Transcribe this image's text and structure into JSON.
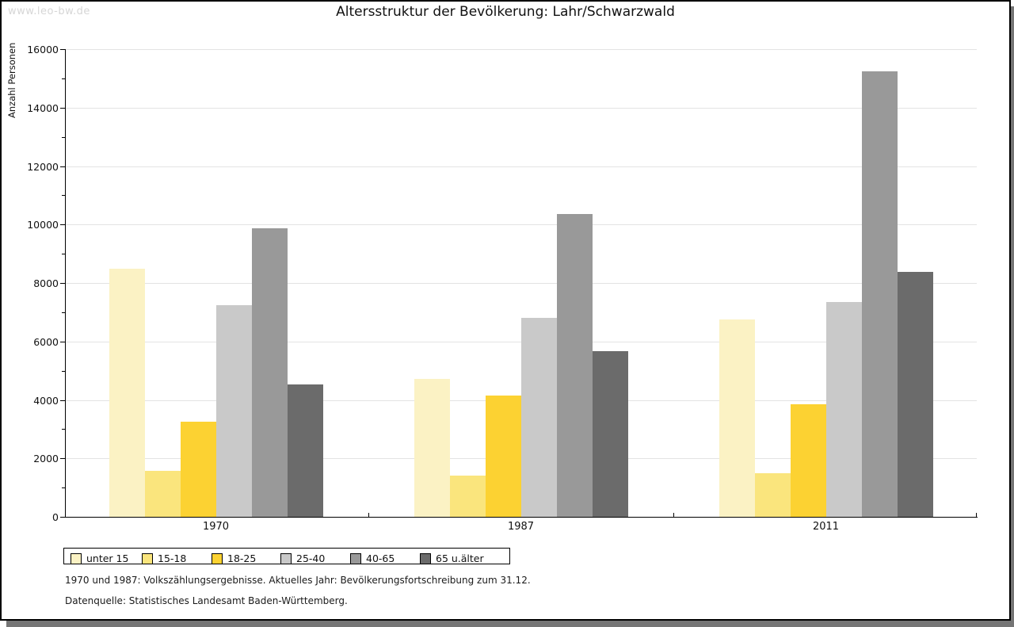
{
  "watermark": "www.leo-bw.de",
  "title": "Altersstruktur der Bevölkerung: Lahr/Schwarzwald",
  "chart_data": {
    "type": "bar",
    "title": "Altersstruktur der Bevölkerung: Lahr/Schwarzwald",
    "xlabel": "",
    "ylabel": "Anzahl Personen",
    "categories": [
      "1970",
      "1987",
      "2011"
    ],
    "series": [
      {
        "name": "unter 15",
        "color": "#fbf2c4",
        "values": [
          8500,
          4710,
          6740
        ]
      },
      {
        "name": "15-18",
        "color": "#fae57d",
        "values": [
          1580,
          1400,
          1480
        ]
      },
      {
        "name": "18-25",
        "color": "#fcd232",
        "values": [
          3260,
          4160,
          3850
        ]
      },
      {
        "name": "25-40",
        "color": "#c9c9c9",
        "values": [
          7230,
          6800,
          7340
        ]
      },
      {
        "name": "40-65",
        "color": "#999999",
        "values": [
          9860,
          10370,
          15230
        ]
      },
      {
        "name": "65 u.älter",
        "color": "#6b6b6b",
        "values": [
          4530,
          5670,
          8390
        ]
      }
    ],
    "ylim": [
      0,
      16000
    ],
    "ytick_step": 2000,
    "minor_tick_step": 1000,
    "grid": true,
    "legend_position": "bottom",
    "axis_color": "#000000",
    "grid_color": "#e3e3e3"
  },
  "footnotes": [
    "1970 und 1987: Volkszählungsergebnisse. Aktuelles Jahr: Bevölkerungsfortschreibung zum 31.12.",
    "Datenquelle: Statistisches Landesamt Baden-Württemberg."
  ]
}
